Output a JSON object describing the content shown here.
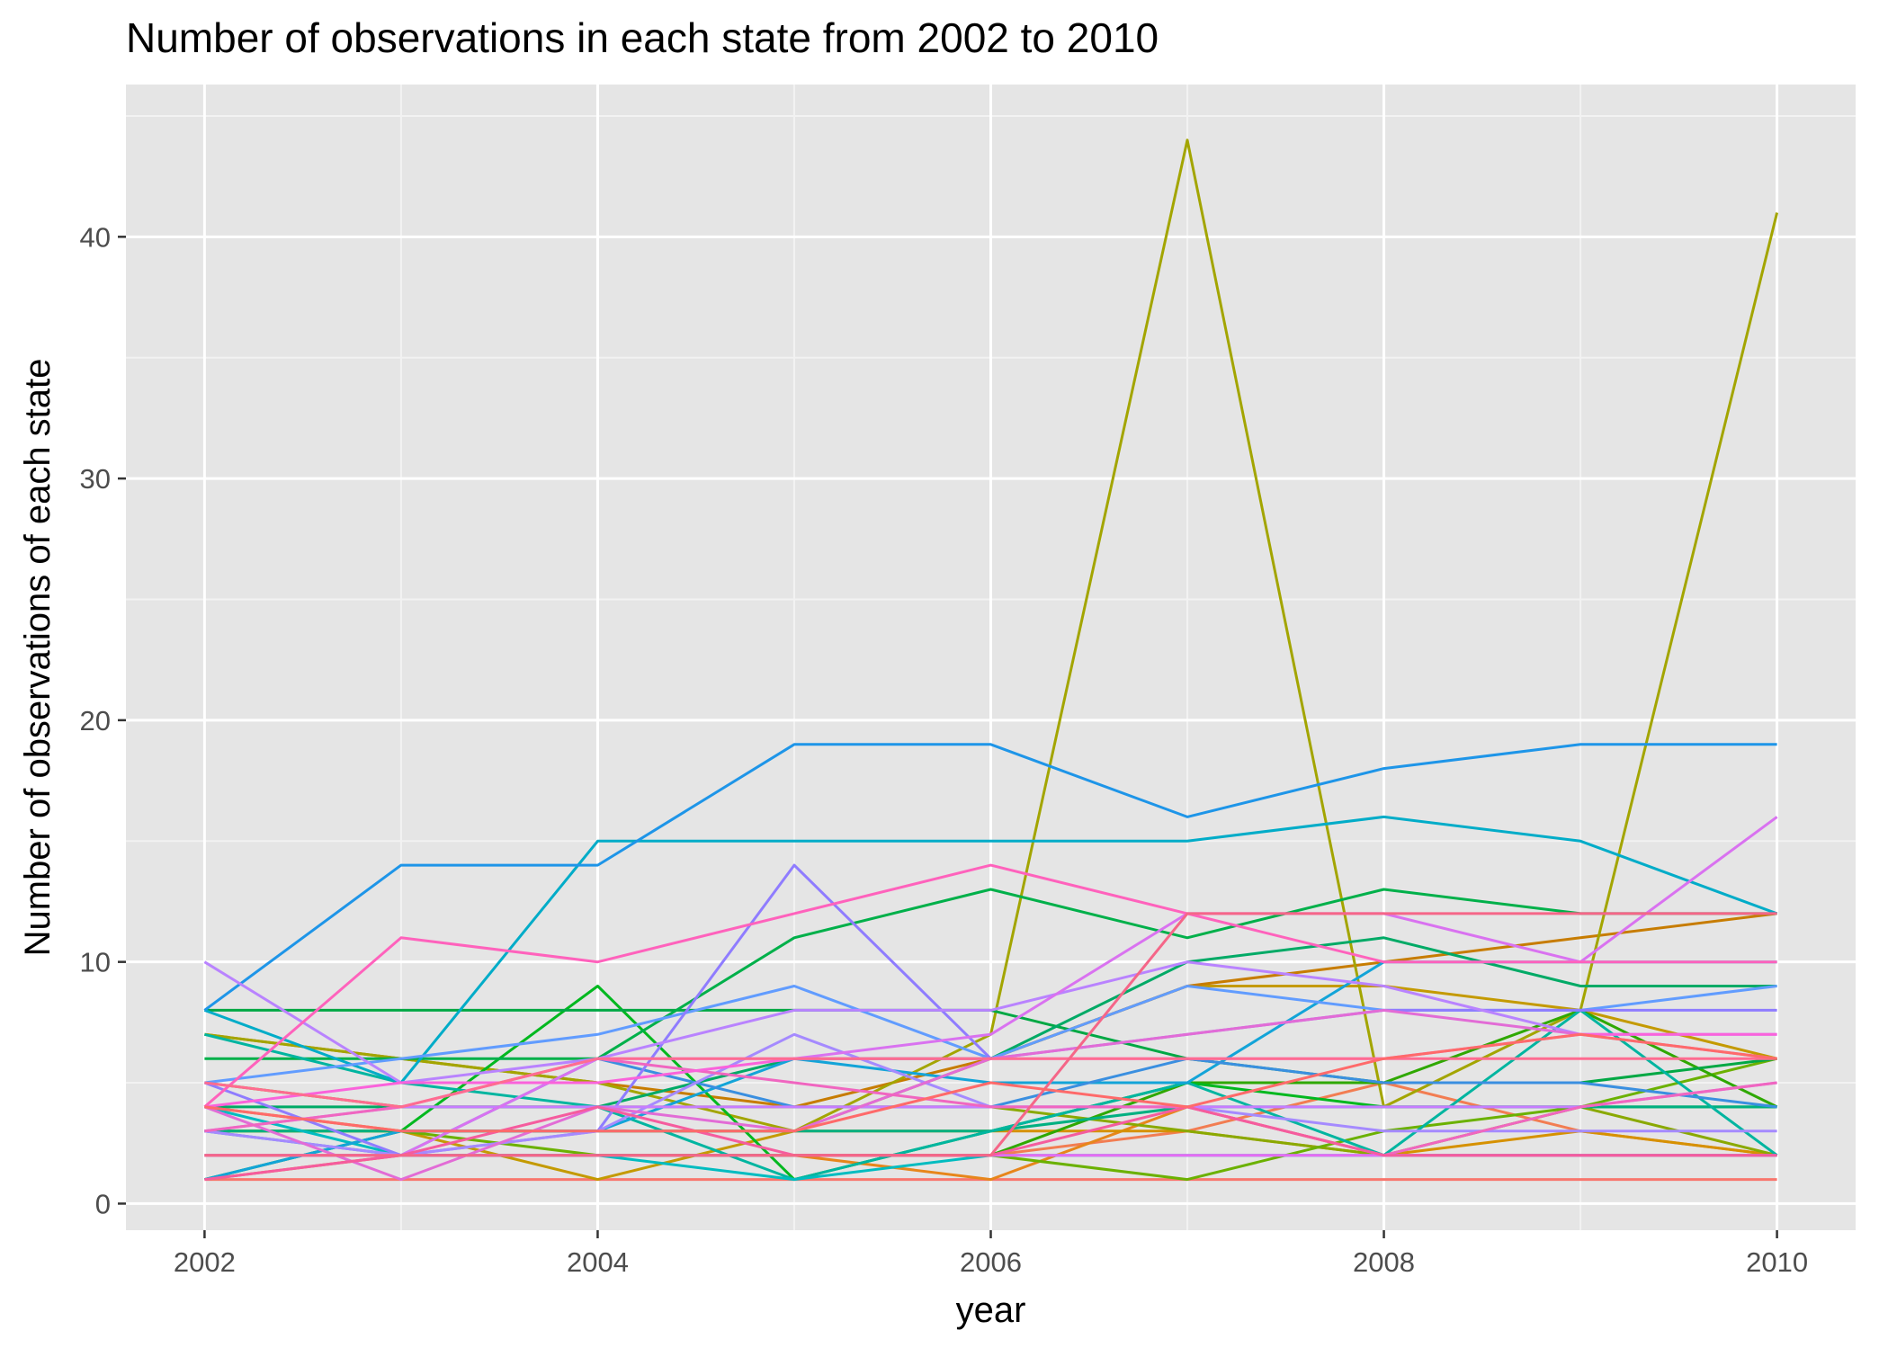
{
  "chart_data": {
    "type": "line",
    "title": "Number of observations in each state from 2002 to 2010",
    "xlabel": "year",
    "ylabel": "Number of observations of each state",
    "x": [
      2002,
      2003,
      2004,
      2005,
      2006,
      2007,
      2008,
      2009,
      2010
    ],
    "xlim": [
      2001.6,
      2010.4
    ],
    "ylim": [
      -1.1,
      46.3
    ],
    "x_ticks": [
      2002,
      2004,
      2006,
      2008,
      2010
    ],
    "y_ticks": [
      0,
      10,
      20,
      30,
      40
    ],
    "grid": true,
    "legend": "none",
    "series": [
      {
        "color": "#F8766D",
        "values": [
          1,
          1,
          1,
          1,
          1,
          1,
          1,
          1,
          1
        ]
      },
      {
        "color": "#F27D52",
        "values": [
          2,
          2,
          2,
          2,
          2,
          3,
          5,
          3,
          2
        ]
      },
      {
        "color": "#E7861B",
        "values": [
          1,
          2,
          2,
          2,
          1,
          4,
          2,
          2,
          2
        ]
      },
      {
        "color": "#D69100",
        "values": [
          4,
          3,
          3,
          3,
          3,
          3,
          2,
          3,
          2
        ]
      },
      {
        "color": "#C49A00",
        "values": [
          3,
          3,
          1,
          3,
          6,
          9,
          9,
          8,
          6
        ]
      },
      {
        "color": "#C77C00",
        "values": [
          7,
          6,
          5,
          4,
          6,
          9,
          10,
          11,
          12
        ]
      },
      {
        "color": "#A3A500",
        "values": [
          7,
          6,
          5,
          3,
          7,
          44,
          4,
          8,
          41
        ]
      },
      {
        "color": "#8AA900",
        "values": [
          5,
          4,
          4,
          4,
          4,
          3,
          2,
          4,
          2
        ]
      },
      {
        "color": "#6BB100",
        "values": [
          3,
          3,
          2,
          2,
          2,
          1,
          3,
          4,
          6
        ]
      },
      {
        "color": "#2FA800",
        "values": [
          2,
          2,
          2,
          2,
          2,
          5,
          5,
          8,
          4
        ]
      },
      {
        "color": "#00B81F",
        "values": [
          1,
          3,
          9,
          1,
          3,
          5,
          4,
          4,
          4
        ]
      },
      {
        "color": "#00A844",
        "values": [
          8,
          8,
          8,
          8,
          8,
          6,
          5,
          5,
          6
        ]
      },
      {
        "color": "#00B04A",
        "values": [
          6,
          6,
          6,
          11,
          13,
          11,
          13,
          12,
          12
        ]
      },
      {
        "color": "#00AA66",
        "values": [
          4,
          4,
          4,
          6,
          6,
          10,
          11,
          9,
          9
        ]
      },
      {
        "color": "#00B081",
        "values": [
          3,
          3,
          3,
          3,
          3,
          4,
          4,
          4,
          4
        ]
      },
      {
        "color": "#00B5A0",
        "values": [
          7,
          5,
          4,
          1,
          3,
          5,
          2,
          8,
          2
        ]
      },
      {
        "color": "#00BCC0",
        "values": [
          4,
          2,
          2,
          1,
          2,
          2,
          2,
          2,
          2
        ]
      },
      {
        "color": "#00ACC8",
        "values": [
          8,
          5,
          15,
          15,
          15,
          15,
          16,
          15,
          12
        ]
      },
      {
        "color": "#13A4D8",
        "values": [
          1,
          3,
          3,
          6,
          5,
          5,
          10,
          10,
          10
        ]
      },
      {
        "color": "#1E95E8",
        "values": [
          8,
          14,
          14,
          19,
          19,
          16,
          18,
          19,
          19
        ]
      },
      {
        "color": "#3A8FE0",
        "values": [
          3,
          2,
          6,
          4,
          4,
          6,
          5,
          5,
          4
        ]
      },
      {
        "color": "#619CFF",
        "values": [
          5,
          6,
          7,
          9,
          6,
          9,
          8,
          8,
          9
        ]
      },
      {
        "color": "#8F7CFF",
        "values": [
          5,
          2,
          3,
          14,
          6,
          7,
          8,
          8,
          8
        ]
      },
      {
        "color": "#A58AFF",
        "values": [
          3,
          2,
          3,
          7,
          4,
          4,
          3,
          3,
          3
        ]
      },
      {
        "color": "#B983FF",
        "values": [
          10,
          5,
          6,
          8,
          8,
          10,
          9,
          7,
          7
        ]
      },
      {
        "color": "#C77CFF",
        "values": [
          3,
          4,
          4,
          4,
          4,
          4,
          4,
          4,
          5
        ]
      },
      {
        "color": "#D972F0",
        "values": [
          2,
          2,
          6,
          6,
          7,
          12,
          12,
          10,
          16
        ]
      },
      {
        "color": "#E76BF3",
        "values": [
          2,
          2,
          2,
          2,
          2,
          2,
          2,
          2,
          2
        ]
      },
      {
        "color": "#E26CD6",
        "values": [
          4,
          1,
          4,
          3,
          6,
          7,
          8,
          7,
          6
        ]
      },
      {
        "color": "#F066C0",
        "values": [
          3,
          4,
          6,
          5,
          4,
          4,
          2,
          4,
          5
        ]
      },
      {
        "color": "#FA62DB",
        "values": [
          4,
          5,
          5,
          6,
          6,
          6,
          6,
          7,
          7
        ]
      },
      {
        "color": "#FF62BC",
        "values": [
          4,
          11,
          10,
          12,
          14,
          12,
          10,
          10,
          10
        ]
      },
      {
        "color": "#F55C9E",
        "values": [
          1,
          2,
          4,
          2,
          2,
          4,
          2,
          2,
          2
        ]
      },
      {
        "color": "#FF6C91",
        "values": [
          5,
          4,
          6,
          6,
          6,
          6,
          6,
          6,
          6
        ]
      },
      {
        "color": "#F56688",
        "values": [
          2,
          2,
          2,
          2,
          2,
          12,
          12,
          12,
          12
        ]
      },
      {
        "color": "#FF6A6A",
        "values": [
          4,
          3,
          3,
          3,
          5,
          4,
          6,
          7,
          6
        ]
      }
    ]
  }
}
